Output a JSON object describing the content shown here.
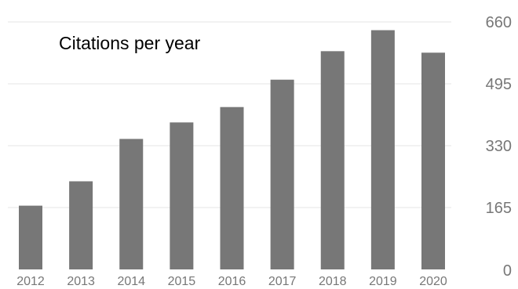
{
  "chart_data": {
    "type": "bar",
    "title": "Citations per year",
    "categories": [
      "2012",
      "2013",
      "2014",
      "2015",
      "2016",
      "2017",
      "2018",
      "2019",
      "2020"
    ],
    "values": [
      170,
      235,
      348,
      392,
      433,
      506,
      582,
      638,
      578
    ],
    "xlabel": "",
    "ylabel": "",
    "ylim": [
      0,
      660
    ],
    "yticks": [
      "0",
      "165",
      "330",
      "495",
      "660"
    ],
    "y_axis_side": "right",
    "grid": true,
    "legend": "none",
    "bar_color": "#777777",
    "grid_color": "#e6e6e6",
    "tick_label_color": "#777777"
  }
}
